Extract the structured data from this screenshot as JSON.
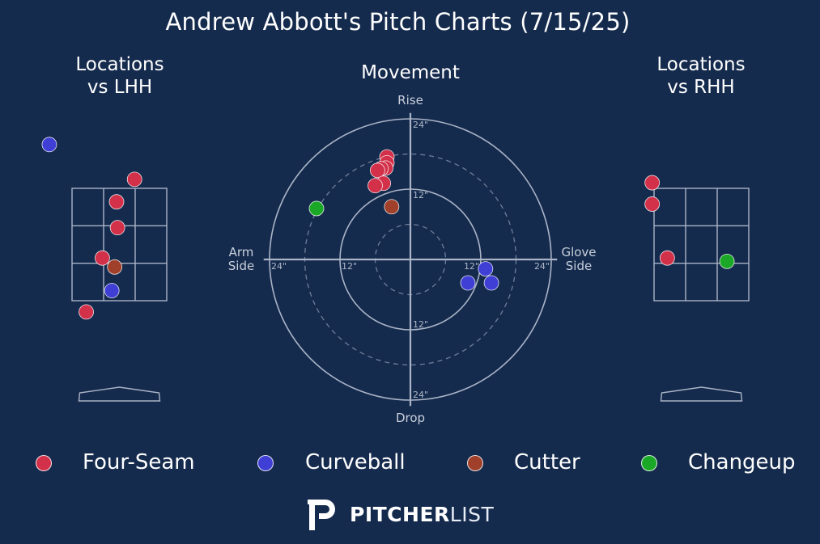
{
  "title": "Andrew Abbott's Pitch Charts (7/15/25)",
  "panels": {
    "lhh": {
      "line1": "Locations",
      "line2": "vs LHH"
    },
    "movement": {
      "title": "Movement"
    },
    "rhh": {
      "line1": "Locations",
      "line2": "vs RHH"
    }
  },
  "movement_labels": {
    "top": "Rise",
    "bottom": "Drop",
    "left_line1": "Arm",
    "left_line2": "Side",
    "right_line1": "Glove",
    "right_line2": "Side",
    "ring_12": "12\"",
    "ring_24": "24\""
  },
  "colors": {
    "background": "#152b4e",
    "Four-Seam": "#d3304a",
    "Curveball": "#3f3fd6",
    "Cutter": "#a0402a",
    "Changeup": "#1aa826"
  },
  "legend": [
    {
      "name": "Four-Seam",
      "color": "#d3304a"
    },
    {
      "name": "Curveball",
      "color": "#3f3fd6"
    },
    {
      "name": "Cutter",
      "color": "#a0402a"
    },
    {
      "name": "Changeup",
      "color": "#1aa826"
    }
  ],
  "logo": {
    "bold": "PITCHER",
    "light": "LIST",
    "icon": "pitcherlist-p-icon"
  },
  "chart_data": [
    {
      "type": "scatter",
      "name": "Locations vs LHH",
      "title": "Locations vs LHH",
      "units": "zone widths (x) / zone heights (y); zone spans x 0-1, y 0-1 from bottom",
      "points": [
        {
          "pitch": "Curveball",
          "x": -0.24,
          "y": 1.39
        },
        {
          "pitch": "Four-Seam",
          "x": 0.66,
          "y": 1.08
        },
        {
          "pitch": "Four-Seam",
          "x": 0.47,
          "y": 0.88
        },
        {
          "pitch": "Four-Seam",
          "x": 0.48,
          "y": 0.65
        },
        {
          "pitch": "Four-Seam",
          "x": 0.32,
          "y": 0.38
        },
        {
          "pitch": "Cutter",
          "x": 0.45,
          "y": 0.3
        },
        {
          "pitch": "Curveball",
          "x": 0.42,
          "y": 0.09
        },
        {
          "pitch": "Four-Seam",
          "x": 0.15,
          "y": -0.1
        }
      ]
    },
    {
      "type": "scatter",
      "name": "Movement",
      "title": "Movement",
      "units": "inches",
      "x_label_neg": "Arm Side",
      "x_label_pos": "Glove Side",
      "y_label_pos": "Rise",
      "y_label_neg": "Drop",
      "rings": [
        6,
        12,
        18,
        24
      ],
      "range": [
        -25,
        25
      ],
      "points": [
        {
          "pitch": "Four-Seam",
          "x": -4.0,
          "y": 17.5
        },
        {
          "pitch": "Four-Seam",
          "x": -4.0,
          "y": 16.5
        },
        {
          "pitch": "Four-Seam",
          "x": -4.2,
          "y": 15.6
        },
        {
          "pitch": "Four-Seam",
          "x": -5.0,
          "y": 15.5
        },
        {
          "pitch": "Four-Seam",
          "x": -5.6,
          "y": 15.2
        },
        {
          "pitch": "Four-Seam",
          "x": -4.6,
          "y": 13.0
        },
        {
          "pitch": "Four-Seam",
          "x": -6.0,
          "y": 12.6
        },
        {
          "pitch": "Changeup",
          "x": -16.0,
          "y": 8.7
        },
        {
          "pitch": "Cutter",
          "x": -3.2,
          "y": 9.0
        },
        {
          "pitch": "Curveball",
          "x": 12.8,
          "y": -1.6
        },
        {
          "pitch": "Curveball",
          "x": 9.8,
          "y": -4.0
        },
        {
          "pitch": "Curveball",
          "x": 13.8,
          "y": -4.0
        }
      ]
    },
    {
      "type": "scatter",
      "name": "Locations vs RHH",
      "title": "Locations vs RHH",
      "units": "zone widths (x) / zone heights (y); zone spans x 0-1, y 0-1 from bottom",
      "points": [
        {
          "pitch": "Four-Seam",
          "x": -0.02,
          "y": 1.05
        },
        {
          "pitch": "Four-Seam",
          "x": -0.02,
          "y": 0.86
        },
        {
          "pitch": "Four-Seam",
          "x": 0.14,
          "y": 0.38
        },
        {
          "pitch": "Changeup",
          "x": 0.77,
          "y": 0.35
        }
      ]
    }
  ]
}
